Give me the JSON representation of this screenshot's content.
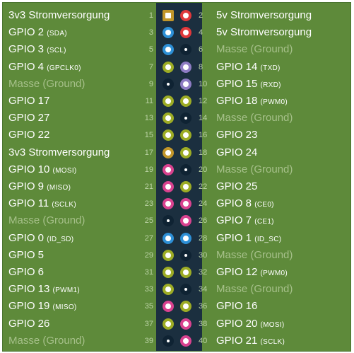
{
  "colors": {
    "power3v3": "#c2962a",
    "power5v": "#e0383b",
    "i2c": "#2d8fd6",
    "gpio": "#9dac25",
    "ground": "#0f2333",
    "uart": "#8e7cc3",
    "spi": "#d9428f",
    "id": "#2d8fd6"
  },
  "pins": [
    {
      "left": {
        "num": "1",
        "name": "3v3 Stromversorgung",
        "tag": "",
        "type": "power3v3"
      },
      "right": {
        "num": "2",
        "name": "5v Stromversorgung",
        "tag": "",
        "type": "power5v"
      }
    },
    {
      "left": {
        "num": "3",
        "name": "GPIO 2",
        "tag": "(SDA)",
        "type": "i2c"
      },
      "right": {
        "num": "4",
        "name": "5v Stromversorgung",
        "tag": "",
        "type": "power5v"
      }
    },
    {
      "left": {
        "num": "5",
        "name": "GPIO 3",
        "tag": "(SCL)",
        "type": "i2c"
      },
      "right": {
        "num": "6",
        "name": "Masse (Ground)",
        "tag": "",
        "type": "ground"
      }
    },
    {
      "left": {
        "num": "7",
        "name": "GPIO 4",
        "tag": "(GPCLK0)",
        "type": "gpio"
      },
      "right": {
        "num": "8",
        "name": "GPIO 14",
        "tag": "(TXD)",
        "type": "uart"
      }
    },
    {
      "left": {
        "num": "9",
        "name": "Masse (Ground)",
        "tag": "",
        "type": "ground"
      },
      "right": {
        "num": "10",
        "name": "GPIO 15",
        "tag": "(RXD)",
        "type": "uart"
      }
    },
    {
      "left": {
        "num": "11",
        "name": "GPIO 17",
        "tag": "",
        "type": "gpio"
      },
      "right": {
        "num": "12",
        "name": "GPIO 18",
        "tag": "(PWM0)",
        "type": "gpio"
      }
    },
    {
      "left": {
        "num": "13",
        "name": "GPIO 27",
        "tag": "",
        "type": "gpio"
      },
      "right": {
        "num": "14",
        "name": "Masse (Ground)",
        "tag": "",
        "type": "ground"
      }
    },
    {
      "left": {
        "num": "15",
        "name": "GPIO 22",
        "tag": "",
        "type": "gpio"
      },
      "right": {
        "num": "16",
        "name": "GPIO 23",
        "tag": "",
        "type": "gpio"
      }
    },
    {
      "left": {
        "num": "17",
        "name": "3v3 Stromversorgung",
        "tag": "",
        "type": "power3v3"
      },
      "right": {
        "num": "18",
        "name": "GPIO 24",
        "tag": "",
        "type": "gpio"
      }
    },
    {
      "left": {
        "num": "19",
        "name": "GPIO 10",
        "tag": "(MOSI)",
        "type": "spi"
      },
      "right": {
        "num": "20",
        "name": "Masse (Ground)",
        "tag": "",
        "type": "ground"
      }
    },
    {
      "left": {
        "num": "21",
        "name": "GPIO 9",
        "tag": "(MISO)",
        "type": "spi"
      },
      "right": {
        "num": "22",
        "name": "GPIO 25",
        "tag": "",
        "type": "gpio"
      }
    },
    {
      "left": {
        "num": "23",
        "name": "GPIO 11",
        "tag": "(SCLK)",
        "type": "spi"
      },
      "right": {
        "num": "24",
        "name": "GPIO 8",
        "tag": "(CE0)",
        "type": "spi"
      }
    },
    {
      "left": {
        "num": "25",
        "name": "Masse (Ground)",
        "tag": "",
        "type": "ground"
      },
      "right": {
        "num": "26",
        "name": "GPIO 7",
        "tag": "(CE1)",
        "type": "spi"
      }
    },
    {
      "left": {
        "num": "27",
        "name": "GPIO 0",
        "tag": "(ID_SD)",
        "type": "id"
      },
      "right": {
        "num": "28",
        "name": "GPIO 1",
        "tag": "(ID_SC)",
        "type": "id"
      }
    },
    {
      "left": {
        "num": "29",
        "name": "GPIO 5",
        "tag": "",
        "type": "gpio"
      },
      "right": {
        "num": "30",
        "name": "Masse (Ground)",
        "tag": "",
        "type": "ground"
      }
    },
    {
      "left": {
        "num": "31",
        "name": "GPIO 6",
        "tag": "",
        "type": "gpio"
      },
      "right": {
        "num": "32",
        "name": "GPIO 12",
        "tag": "(PWM0)",
        "type": "gpio"
      }
    },
    {
      "left": {
        "num": "33",
        "name": "GPIO 13",
        "tag": "(PWM1)",
        "type": "gpio"
      },
      "right": {
        "num": "34",
        "name": "Masse (Ground)",
        "tag": "",
        "type": "ground"
      }
    },
    {
      "left": {
        "num": "35",
        "name": "GPIO 19",
        "tag": "(MISO)",
        "type": "spi"
      },
      "right": {
        "num": "36",
        "name": "GPIO 16",
        "tag": "",
        "type": "gpio"
      }
    },
    {
      "left": {
        "num": "37",
        "name": "GPIO 26",
        "tag": "",
        "type": "gpio"
      },
      "right": {
        "num": "38",
        "name": "GPIO 20",
        "tag": "(MOSI)",
        "type": "spi"
      }
    },
    {
      "left": {
        "num": "39",
        "name": "Masse (Ground)",
        "tag": "",
        "type": "ground"
      },
      "right": {
        "num": "40",
        "name": "GPIO 21",
        "tag": "(SCLK)",
        "type": "spi"
      }
    }
  ]
}
